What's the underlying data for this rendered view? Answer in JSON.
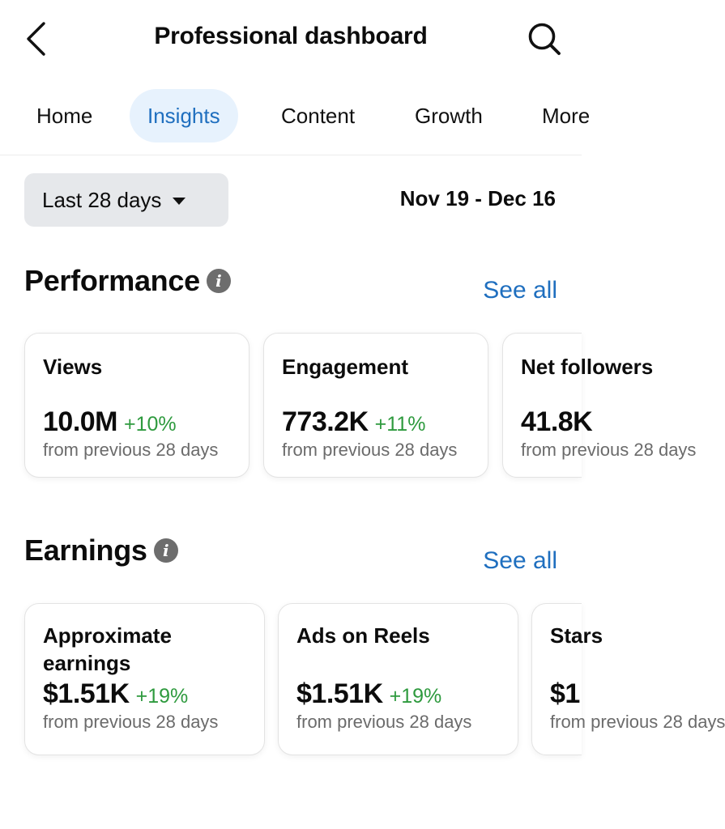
{
  "header": {
    "title": "Professional dashboard"
  },
  "tabs": [
    {
      "label": "Home"
    },
    {
      "label": "Insights"
    },
    {
      "label": "Content"
    },
    {
      "label": "Growth"
    },
    {
      "label": "More"
    }
  ],
  "filter": {
    "range_label": "Last 28 days",
    "date_range": "Nov 19 - Dec 16"
  },
  "performance": {
    "title": "Performance",
    "see_all": "See all",
    "cards": [
      {
        "label": "Views",
        "value": "10.0M",
        "change": "+10%",
        "sub": "from previous 28 days"
      },
      {
        "label": "Engagement",
        "value": "773.2K",
        "change": "+11%",
        "sub": "from previous 28 days"
      },
      {
        "label": "Net followers",
        "value": "41.8K",
        "change": "",
        "sub": "from previous 28 days"
      }
    ]
  },
  "earnings": {
    "title": "Earnings",
    "see_all": "See all",
    "cards": [
      {
        "label_line1": "Approximate",
        "label_line2": "earnings",
        "value": "$1.51K",
        "change": "+19%",
        "sub": "from previous 28 days"
      },
      {
        "label_line1": "Ads on Reels",
        "value": "$1.51K",
        "change": "+19%",
        "sub": "from previous 28 days"
      },
      {
        "label_line1": "Stars",
        "value": "$1",
        "change": "",
        "sub": "from previous 28 days"
      }
    ]
  }
}
